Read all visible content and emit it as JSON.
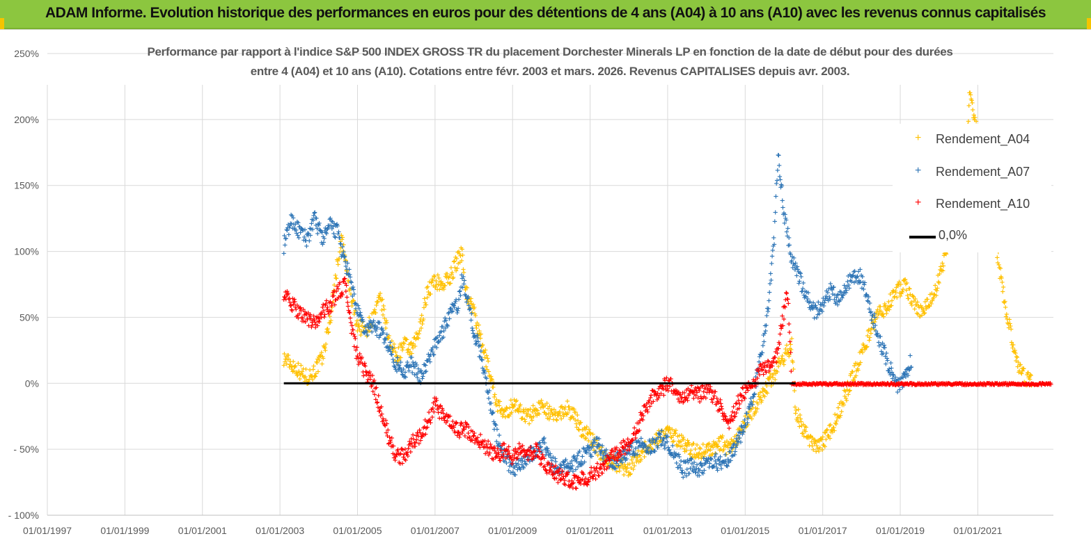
{
  "banner": {
    "title": "ADAM Informe. Evolution historique des performances en euros pour des détentions de 4 ans (A04) à 10 ans (A10) avec les revenus connus capitalisés",
    "color": "#8cc63f"
  },
  "chart_data": {
    "type": "scatter",
    "title_line1": "Performance par rapport à l'indice S&P 500 INDEX GROSS TR  du placement Dorchester Minerals LP en fonction de la date de début pour des durées",
    "title_line2": "entre 4 (A04) et 10 ans (A10). Cotations entre févr. 2003 et mars. 2026. Revenus CAPITALISES depuis avr. 2003.",
    "x_unit": "year",
    "xlim": [
      1997,
      2022.95
    ],
    "ylim": [
      -100,
      250
    ],
    "y_ticks": [
      {
        "value": 250,
        "label": "250%"
      },
      {
        "value": 200,
        "label": "200%"
      },
      {
        "value": 150,
        "label": "150%"
      },
      {
        "value": 100,
        "label": "100%"
      },
      {
        "value": 50,
        "label": "50%"
      },
      {
        "value": 0,
        "label": "0%"
      },
      {
        "value": -50,
        "label": "- 50%"
      },
      {
        "value": -100,
        "label": "- 100%"
      }
    ],
    "x_ticks": [
      {
        "value": 1997,
        "label": "01/01/1997"
      },
      {
        "value": 1999,
        "label": "01/01/1999"
      },
      {
        "value": 2001,
        "label": "01/01/2001"
      },
      {
        "value": 2003,
        "label": "01/01/2003"
      },
      {
        "value": 2005,
        "label": "01/01/2005"
      },
      {
        "value": 2007,
        "label": "01/01/2007"
      },
      {
        "value": 2009,
        "label": "01/01/2009"
      },
      {
        "value": 2011,
        "label": "01/01/2011"
      },
      {
        "value": 2013,
        "label": "01/01/2013"
      },
      {
        "value": 2015,
        "label": "01/01/2015"
      },
      {
        "value": 2017,
        "label": "01/01/2017"
      },
      {
        "value": 2019,
        "label": "01/01/2019"
      },
      {
        "value": 2021,
        "label": "01/01/2021"
      }
    ],
    "series": [
      {
        "name": "Rendement_A04",
        "color": "#ffc000",
        "points": [
          [
            2003.1,
            20
          ],
          [
            2003.3,
            15
          ],
          [
            2003.5,
            10
          ],
          [
            2003.7,
            5
          ],
          [
            2003.9,
            10
          ],
          [
            2004.1,
            20
          ],
          [
            2004.3,
            50
          ],
          [
            2004.5,
            95
          ],
          [
            2004.6,
            110
          ],
          [
            2004.8,
            70
          ],
          [
            2005.0,
            45
          ],
          [
            2005.2,
            40
          ],
          [
            2005.4,
            50
          ],
          [
            2005.6,
            65
          ],
          [
            2005.8,
            35
          ],
          [
            2006.0,
            20
          ],
          [
            2006.2,
            30
          ],
          [
            2006.4,
            25
          ],
          [
            2006.6,
            40
          ],
          [
            2006.8,
            70
          ],
          [
            2007.0,
            78
          ],
          [
            2007.2,
            75
          ],
          [
            2007.4,
            82
          ],
          [
            2007.6,
            95
          ],
          [
            2007.7,
            100
          ],
          [
            2007.8,
            70
          ],
          [
            2008.0,
            55
          ],
          [
            2008.2,
            30
          ],
          [
            2008.4,
            10
          ],
          [
            2008.6,
            -15
          ],
          [
            2008.8,
            -25
          ],
          [
            2009.0,
            -15
          ],
          [
            2009.2,
            -20
          ],
          [
            2009.4,
            -25
          ],
          [
            2009.6,
            -20
          ],
          [
            2009.8,
            -15
          ],
          [
            2010.0,
            -25
          ],
          [
            2010.2,
            -22
          ],
          [
            2010.4,
            -18
          ],
          [
            2010.6,
            -25
          ],
          [
            2010.8,
            -35
          ],
          [
            2011.0,
            -40
          ],
          [
            2011.2,
            -50
          ],
          [
            2011.4,
            -55
          ],
          [
            2011.6,
            -60
          ],
          [
            2011.8,
            -62
          ],
          [
            2012.0,
            -65
          ],
          [
            2012.2,
            -55
          ],
          [
            2012.4,
            -50
          ],
          [
            2012.6,
            -45
          ],
          [
            2012.8,
            -40
          ],
          [
            2013.0,
            -35
          ],
          [
            2013.2,
            -40
          ],
          [
            2013.4,
            -45
          ],
          [
            2013.6,
            -50
          ],
          [
            2013.8,
            -52
          ],
          [
            2014.0,
            -50
          ],
          [
            2014.2,
            -48
          ],
          [
            2014.4,
            -45
          ],
          [
            2014.6,
            -50
          ],
          [
            2014.8,
            -40
          ],
          [
            2015.0,
            -30
          ],
          [
            2015.2,
            -20
          ],
          [
            2015.4,
            -10
          ],
          [
            2015.6,
            0
          ],
          [
            2015.8,
            10
          ],
          [
            2016.0,
            20
          ],
          [
            2016.2,
            30
          ],
          [
            2016.3,
            -20
          ],
          [
            2016.5,
            -35
          ],
          [
            2016.7,
            -45
          ],
          [
            2016.9,
            -48
          ],
          [
            2017.1,
            -40
          ],
          [
            2017.3,
            -30
          ],
          [
            2017.5,
            -15
          ],
          [
            2017.7,
            0
          ],
          [
            2017.9,
            15
          ],
          [
            2018.1,
            30
          ],
          [
            2018.3,
            45
          ],
          [
            2018.5,
            55
          ],
          [
            2018.7,
            60
          ],
          [
            2018.9,
            70
          ],
          [
            2019.1,
            75
          ],
          [
            2019.3,
            65
          ],
          [
            2019.5,
            55
          ],
          [
            2019.7,
            60
          ],
          [
            2019.9,
            70
          ],
          [
            2020.1,
            90
          ],
          [
            2020.3,
            110
          ],
          [
            2020.5,
            130
          ],
          [
            2020.7,
            175
          ],
          [
            2020.8,
            225
          ],
          [
            2020.9,
            200
          ],
          [
            2021.1,
            180
          ],
          [
            2021.3,
            130
          ],
          [
            2021.5,
            100
          ],
          [
            2021.7,
            60
          ],
          [
            2021.9,
            30
          ],
          [
            2022.0,
            15
          ],
          [
            2022.2,
            5
          ],
          [
            2022.4,
            2
          ]
        ]
      },
      {
        "name": "Rendement_A07",
        "color": "#2e75b6",
        "points": [
          [
            2003.1,
            105
          ],
          [
            2003.3,
            125
          ],
          [
            2003.5,
            115
          ],
          [
            2003.7,
            110
          ],
          [
            2003.9,
            125
          ],
          [
            2004.1,
            110
          ],
          [
            2004.3,
            120
          ],
          [
            2004.5,
            115
          ],
          [
            2004.6,
            100
          ],
          [
            2004.8,
            80
          ],
          [
            2005.0,
            55
          ],
          [
            2005.2,
            40
          ],
          [
            2005.4,
            45
          ],
          [
            2005.6,
            40
          ],
          [
            2005.8,
            30
          ],
          [
            2006.0,
            15
          ],
          [
            2006.2,
            10
          ],
          [
            2006.4,
            15
          ],
          [
            2006.6,
            5
          ],
          [
            2006.8,
            15
          ],
          [
            2007.0,
            30
          ],
          [
            2007.2,
            40
          ],
          [
            2007.4,
            55
          ],
          [
            2007.6,
            60
          ],
          [
            2007.7,
            80
          ],
          [
            2007.8,
            70
          ],
          [
            2008.0,
            40
          ],
          [
            2008.2,
            20
          ],
          [
            2008.4,
            -10
          ],
          [
            2008.6,
            -40
          ],
          [
            2008.8,
            -55
          ],
          [
            2009.0,
            -65
          ],
          [
            2009.2,
            -60
          ],
          [
            2009.4,
            -55
          ],
          [
            2009.6,
            -50
          ],
          [
            2009.8,
            -45
          ],
          [
            2010.0,
            -60
          ],
          [
            2010.2,
            -65
          ],
          [
            2010.4,
            -62
          ],
          [
            2010.6,
            -60
          ],
          [
            2010.8,
            -55
          ],
          [
            2011.0,
            -50
          ],
          [
            2011.2,
            -45
          ],
          [
            2011.4,
            -55
          ],
          [
            2011.6,
            -60
          ],
          [
            2011.8,
            -55
          ],
          [
            2012.0,
            -50
          ],
          [
            2012.2,
            -48
          ],
          [
            2012.4,
            -45
          ],
          [
            2012.6,
            -48
          ],
          [
            2012.8,
            -40
          ],
          [
            2013.0,
            -45
          ],
          [
            2013.2,
            -55
          ],
          [
            2013.4,
            -65
          ],
          [
            2013.6,
            -62
          ],
          [
            2013.8,
            -65
          ],
          [
            2014.0,
            -60
          ],
          [
            2014.2,
            -58
          ],
          [
            2014.4,
            -62
          ],
          [
            2014.6,
            -55
          ],
          [
            2014.8,
            -45
          ],
          [
            2015.0,
            -30
          ],
          [
            2015.2,
            -10
          ],
          [
            2015.4,
            20
          ],
          [
            2015.6,
            60
          ],
          [
            2015.75,
            110
          ],
          [
            2015.85,
            175
          ],
          [
            2016.0,
            130
          ],
          [
            2016.2,
            95
          ],
          [
            2016.4,
            80
          ],
          [
            2016.6,
            65
          ],
          [
            2016.8,
            55
          ],
          [
            2017.0,
            60
          ],
          [
            2017.2,
            70
          ],
          [
            2017.4,
            65
          ],
          [
            2017.6,
            75
          ],
          [
            2017.8,
            80
          ],
          [
            2017.95,
            82
          ],
          [
            2018.1,
            70
          ],
          [
            2018.3,
            50
          ],
          [
            2018.5,
            30
          ],
          [
            2018.7,
            15
          ],
          [
            2018.9,
            0
          ],
          [
            2019.0,
            -2
          ],
          [
            2019.2,
            10
          ],
          [
            2019.3,
            20
          ]
        ]
      },
      {
        "name": "Rendement_A10",
        "color": "#ff0000",
        "points": [
          [
            2003.1,
            70
          ],
          [
            2003.3,
            60
          ],
          [
            2003.5,
            55
          ],
          [
            2003.7,
            50
          ],
          [
            2003.9,
            45
          ],
          [
            2004.1,
            55
          ],
          [
            2004.3,
            60
          ],
          [
            2004.5,
            70
          ],
          [
            2004.7,
            75
          ],
          [
            2004.8,
            50
          ],
          [
            2005.0,
            20
          ],
          [
            2005.2,
            10
          ],
          [
            2005.4,
            0
          ],
          [
            2005.6,
            -20
          ],
          [
            2005.8,
            -40
          ],
          [
            2006.0,
            -55
          ],
          [
            2006.2,
            -55
          ],
          [
            2006.4,
            -45
          ],
          [
            2006.6,
            -40
          ],
          [
            2006.8,
            -30
          ],
          [
            2007.0,
            -15
          ],
          [
            2007.2,
            -25
          ],
          [
            2007.4,
            -30
          ],
          [
            2007.6,
            -35
          ],
          [
            2007.8,
            -35
          ],
          [
            2008.0,
            -40
          ],
          [
            2008.2,
            -45
          ],
          [
            2008.4,
            -50
          ],
          [
            2008.6,
            -55
          ],
          [
            2008.8,
            -50
          ],
          [
            2009.0,
            -55
          ],
          [
            2009.2,
            -50
          ],
          [
            2009.4,
            -55
          ],
          [
            2009.6,
            -50
          ],
          [
            2009.8,
            -60
          ],
          [
            2010.0,
            -65
          ],
          [
            2010.2,
            -70
          ],
          [
            2010.4,
            -72
          ],
          [
            2010.6,
            -75
          ],
          [
            2010.8,
            -72
          ],
          [
            2011.0,
            -70
          ],
          [
            2011.2,
            -65
          ],
          [
            2011.4,
            -60
          ],
          [
            2011.6,
            -55
          ],
          [
            2011.8,
            -50
          ],
          [
            2012.0,
            -45
          ],
          [
            2012.2,
            -35
          ],
          [
            2012.4,
            -20
          ],
          [
            2012.6,
            -10
          ],
          [
            2012.8,
            -5
          ],
          [
            2013.0,
            0
          ],
          [
            2013.2,
            -5
          ],
          [
            2013.4,
            -10
          ],
          [
            2013.6,
            -5
          ],
          [
            2013.8,
            -8
          ],
          [
            2014.0,
            -5
          ],
          [
            2014.2,
            -10
          ],
          [
            2014.4,
            -20
          ],
          [
            2014.6,
            -30
          ],
          [
            2014.8,
            -15
          ],
          [
            2015.0,
            -5
          ],
          [
            2015.2,
            0
          ],
          [
            2015.4,
            10
          ],
          [
            2015.6,
            15
          ],
          [
            2015.8,
            20
          ],
          [
            2016.0,
            55
          ],
          [
            2016.1,
            70
          ],
          [
            2016.2,
            0
          ],
          [
            2016.5,
            0
          ],
          [
            2017.0,
            0
          ],
          [
            2017.5,
            0
          ],
          [
            2018.0,
            0
          ],
          [
            2018.5,
            0
          ],
          [
            2019.0,
            0
          ],
          [
            2019.5,
            0
          ],
          [
            2020.0,
            0
          ],
          [
            2020.5,
            0
          ],
          [
            2021.0,
            0
          ],
          [
            2021.5,
            0
          ],
          [
            2022.0,
            0
          ],
          [
            2022.5,
            0
          ],
          [
            2022.9,
            0
          ]
        ]
      }
    ],
    "reference_line": {
      "name": "0,0%",
      "value": 0,
      "x_start": 2003.1,
      "x_end": 2016.3,
      "color": "#000000"
    },
    "legend": {
      "position": "top-right",
      "items": [
        "Rendement_A04",
        "Rendement_A07",
        "Rendement_A10",
        "0,0%"
      ]
    }
  }
}
